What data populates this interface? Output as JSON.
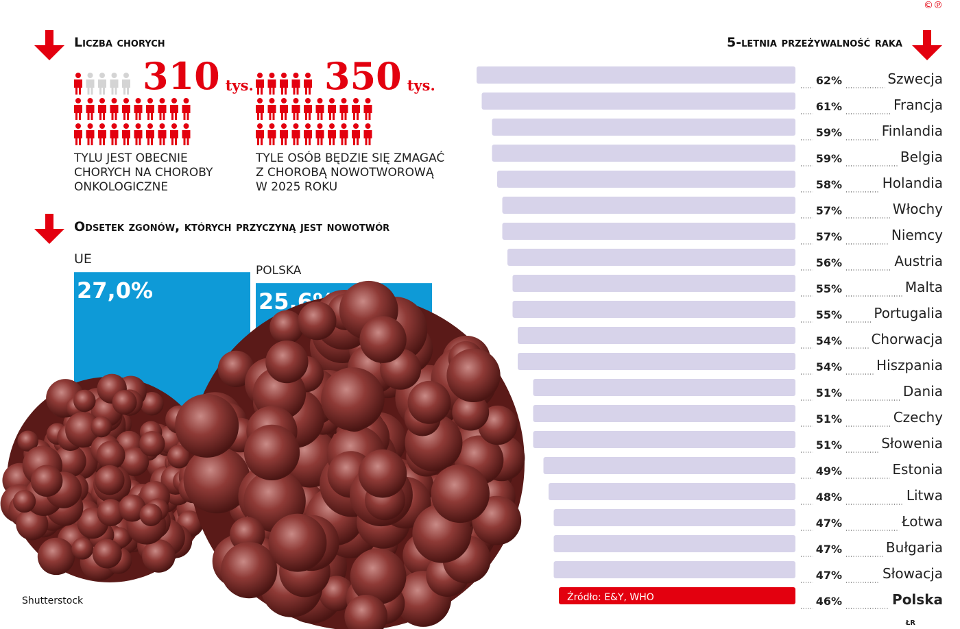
{
  "chart_data": [
    {
      "type": "pictogram",
      "title": "Liczba chorych",
      "values": [
        310,
        350
      ],
      "unit": "tys.",
      "captions": [
        [
          "TYLU JEST OBECNIE",
          "CHORYCH NA CHOROBY",
          "ONKOLOGICZNE"
        ],
        [
          "TYLE OSÓB BĘDZIE SIĘ ZMAGAĆ",
          "Z CHOROBĄ NOWOTWOROWĄ",
          "W 2025 ROKU"
        ]
      ],
      "color": "#e3000f"
    },
    {
      "type": "bar",
      "title": "Odsetek zgonów, których przyczyną jest nowotwór",
      "categories": [
        "UE",
        "POLSKA"
      ],
      "values": [
        27.0,
        25.6
      ],
      "value_labels": [
        "27,0%",
        "25,6%"
      ],
      "color": "#0e9ad7",
      "credit": "Shutterstock"
    },
    {
      "type": "barh",
      "title": "5-letnia przeżywalność raka",
      "categories": [
        "Szwecja",
        "Francja",
        "Finlandia",
        "Belgia",
        "Holandia",
        "Włochy",
        "Niemcy",
        "Austria",
        "Malta",
        "Portugalia",
        "Chorwacja",
        "Hiszpania",
        "Dania",
        "Czechy",
        "Słowenia",
        "Estonia",
        "Litwa",
        "Łotwa",
        "Bułgaria",
        "Słowacja",
        "Polska"
      ],
      "values": [
        62,
        61,
        59,
        59,
        58,
        57,
        57,
        56,
        55,
        55,
        54,
        54,
        51,
        51,
        51,
        49,
        48,
        47,
        47,
        47,
        46
      ],
      "value_labels": [
        "62%",
        "61%",
        "59%",
        "59%",
        "58%",
        "57%",
        "57%",
        "56%",
        "55%",
        "55%",
        "54%",
        "54%",
        "51%",
        "51%",
        "51%",
        "49%",
        "48%",
        "47%",
        "47%",
        "47%",
        "46%"
      ],
      "colors": [
        "#d7d3ea",
        "#d7d3ea",
        "#d7d3ea",
        "#d7d3ea",
        "#d7d3ea",
        "#d7d3ea",
        "#d7d3ea",
        "#d7d3ea",
        "#d7d3ea",
        "#d7d3ea",
        "#d7d3ea",
        "#d7d3ea",
        "#d7d3ea",
        "#d7d3ea",
        "#d7d3ea",
        "#d7d3ea",
        "#d7d3ea",
        "#d7d3ea",
        "#d7d3ea",
        "#d7d3ea",
        "#e3000f"
      ],
      "source": "Źródło: E&Y, WHO"
    }
  ],
  "logo": "©℗",
  "author": "ŁR"
}
